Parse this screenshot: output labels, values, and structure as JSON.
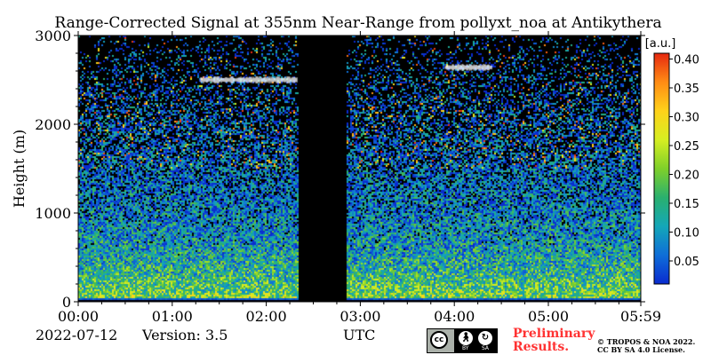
{
  "chart_data": {
    "type": "heatmap",
    "title": "Range-Corrected Signal at 355nm Near-Range from pollyxt_noa at Antikythera",
    "xlabel": "UTC",
    "ylabel": "Height (m)",
    "x_tick_labels": [
      "00:00",
      "01:00",
      "02:00",
      "03:00",
      "04:00",
      "05:00",
      "05:59"
    ],
    "x_tick_values_hours": [
      0,
      1,
      2,
      3,
      4,
      5,
      5.983
    ],
    "xlim_hours": [
      0,
      5.983
    ],
    "y_ticks": [
      0,
      1000,
      2000,
      3000
    ],
    "ylim": [
      0,
      3000
    ],
    "no_data_interval_hours": [
      2.33,
      2.85
    ],
    "cloud_layers": [
      {
        "start_hours": 1.3,
        "end_hours": 2.33,
        "height_m": 2500
      },
      {
        "start_hours": 3.9,
        "end_hours": 4.4,
        "height_m": 2640
      }
    ],
    "colorbar": {
      "label": "[a.u.]",
      "range": [
        0.01,
        0.41
      ],
      "ticks": [
        "0.05",
        "0.10",
        "0.15",
        "0.20",
        "0.25",
        "0.30",
        "0.35",
        "0.40"
      ],
      "tick_values": [
        0.05,
        0.1,
        0.15,
        0.2,
        0.25,
        0.3,
        0.35,
        0.4
      ],
      "colormap": [
        "#0a2bcf",
        "#0f6ed8",
        "#14a7b8",
        "#2ab06e",
        "#7fd02a",
        "#d6ee22",
        "#ffd21a",
        "#ff8c14",
        "#e62810"
      ]
    },
    "grid": false,
    "legend": "none"
  },
  "footer": {
    "date": "2022-07-12",
    "version": "Version: 3.5",
    "preliminary_line1": "Preliminary",
    "preliminary_line2": "Results.",
    "copyright_line1": "© TROPOS & NOA 2022.",
    "copyright_line2": "CC BY SA 4.0 License.",
    "badge_text": "cc",
    "badge_by": "BY",
    "badge_sa": "SA"
  },
  "colors": {
    "background": "#000000",
    "preliminary_text": "#ff3333"
  }
}
